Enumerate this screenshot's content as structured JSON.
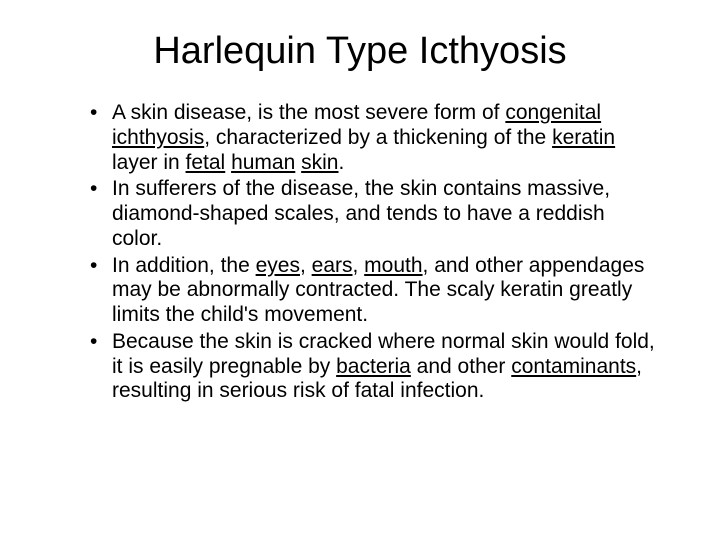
{
  "background_color": "#ffffff",
  "text_color": "#000000",
  "title": {
    "text": "Harlequin Type Icthyosis",
    "fontsize": 38,
    "align": "center"
  },
  "bullets": {
    "fontsize": 21,
    "items": [
      {
        "segments": [
          {
            "t": "A skin disease, is the most severe form of ",
            "u": false
          },
          {
            "t": "congenital ichthyosis",
            "u": true
          },
          {
            "t": ", characterized by a thickening of the ",
            "u": false
          },
          {
            "t": "keratin",
            "u": true
          },
          {
            "t": " layer in ",
            "u": false
          },
          {
            "t": "fetal",
            "u": true
          },
          {
            "t": " ",
            "u": false
          },
          {
            "t": "human",
            "u": true
          },
          {
            "t": " ",
            "u": false
          },
          {
            "t": "skin",
            "u": true
          },
          {
            "t": ".",
            "u": false
          }
        ]
      },
      {
        "segments": [
          {
            "t": "In sufferers of the disease, the skin contains massive, diamond-shaped scales, and tends to have a reddish color.",
            "u": false
          }
        ]
      },
      {
        "segments": [
          {
            "t": "In addition, the ",
            "u": false
          },
          {
            "t": "eyes",
            "u": true
          },
          {
            "t": ", ",
            "u": false
          },
          {
            "t": "ears",
            "u": true
          },
          {
            "t": ", ",
            "u": false
          },
          {
            "t": "mouth",
            "u": true
          },
          {
            "t": ", and other appendages may be abnormally contracted. The scaly keratin greatly limits the child's movement.",
            "u": false
          }
        ]
      },
      {
        "segments": [
          {
            "t": "Because the skin is cracked where normal skin would fold, it is easily pregnable by ",
            "u": false
          },
          {
            "t": "bacteria",
            "u": true
          },
          {
            "t": " and other ",
            "u": false
          },
          {
            "t": "contaminants",
            "u": true
          },
          {
            "t": ", resulting in serious risk of fatal infection.",
            "u": false
          }
        ]
      }
    ]
  }
}
